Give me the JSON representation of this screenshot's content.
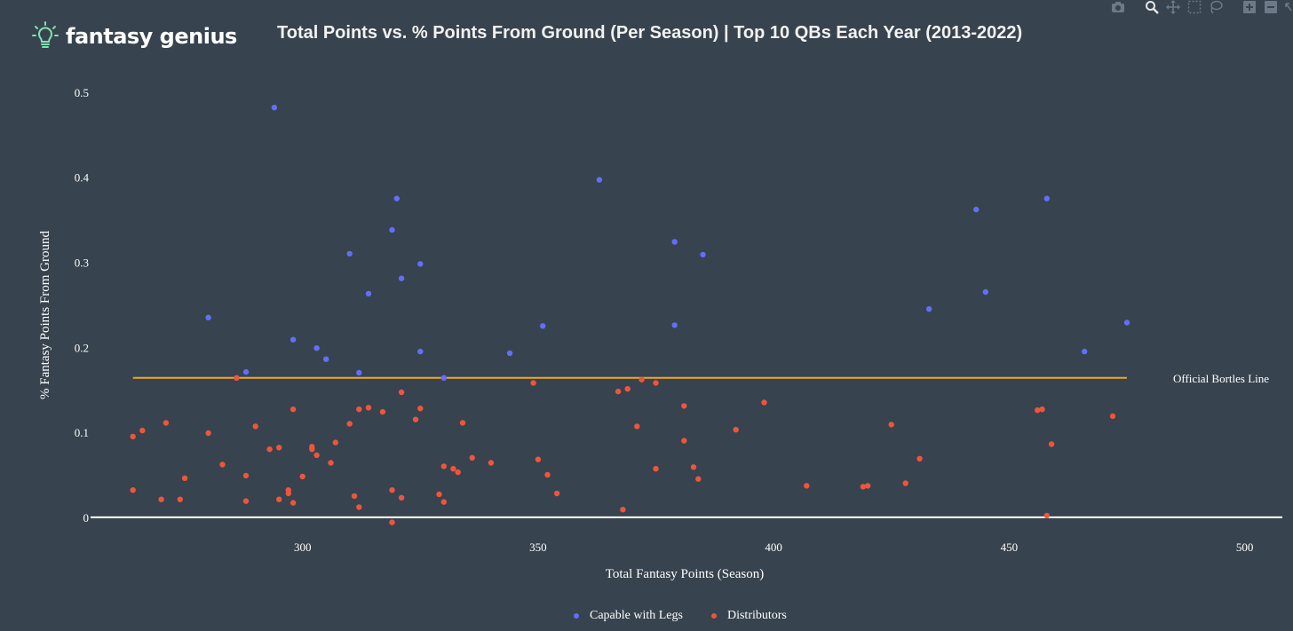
{
  "brand": {
    "name": "fantasy genius",
    "icon": "lightbulb-icon",
    "icon_color": "#7fe3b1"
  },
  "toolbar": {
    "icons": [
      "camera-icon",
      "zoom-icon",
      "pan-icon",
      "box-select-icon",
      "lasso-icon",
      "zoom-in-icon",
      "zoom-out-icon",
      "autoscale-icon"
    ]
  },
  "colors": {
    "background": "#37434e",
    "capable": "#636efa",
    "distributors": "#ef553b",
    "bortles_line": "#f5a623",
    "zero_line": "#ffffff"
  },
  "chart_data": {
    "type": "scatter",
    "title": "Total Points vs. % Points From Ground (Per Season) | Top 10 QBs Each Year (2013-2022)",
    "xlabel": "Total Fantasy Points (Season)",
    "ylabel": "% Fantasy Points From Ground",
    "xlim": [
      255,
      508
    ],
    "ylim": [
      -0.02,
      0.525
    ],
    "xticks": [
      300,
      350,
      400,
      450,
      500
    ],
    "xtick_labels": [
      "300",
      "350",
      "400",
      "450",
      "500"
    ],
    "yticks": [
      0,
      0.1,
      0.2,
      0.3,
      0.4,
      0.5
    ],
    "ytick_labels": [
      "0",
      "0.1",
      "0.2",
      "0.3",
      "0.4",
      "0.5"
    ],
    "legend_position": "bottom-center",
    "grid": false,
    "reference_line": {
      "label": "Official Bortles Line",
      "y": 0.164,
      "x_range": [
        264,
        475
      ]
    },
    "series": [
      {
        "name": "Capable with Legs",
        "color": "#636efa",
        "points": [
          [
            294,
            0.482
          ],
          [
            280,
            0.235
          ],
          [
            288,
            0.171
          ],
          [
            298,
            0.209
          ],
          [
            303,
            0.199
          ],
          [
            305,
            0.186
          ],
          [
            310,
            0.31
          ],
          [
            312,
            0.17
          ],
          [
            314,
            0.263
          ],
          [
            319,
            0.338
          ],
          [
            320,
            0.375
          ],
          [
            321,
            0.281
          ],
          [
            325,
            0.298
          ],
          [
            325,
            0.195
          ],
          [
            330,
            0.164
          ],
          [
            344,
            0.193
          ],
          [
            351,
            0.225
          ],
          [
            363,
            0.397
          ],
          [
            379,
            0.324
          ],
          [
            379,
            0.226
          ],
          [
            385,
            0.309
          ],
          [
            433,
            0.245
          ],
          [
            443,
            0.362
          ],
          [
            445,
            0.265
          ],
          [
            458,
            0.375
          ],
          [
            466,
            0.195
          ],
          [
            475,
            0.229
          ]
        ]
      },
      {
        "name": "Distributors",
        "color": "#ef553b",
        "points": [
          [
            264,
            0.095
          ],
          [
            264,
            0.032
          ],
          [
            266,
            0.102
          ],
          [
            270,
            0.021
          ],
          [
            271,
            0.111
          ],
          [
            274,
            0.021
          ],
          [
            275,
            0.046
          ],
          [
            280,
            0.099
          ],
          [
            283,
            0.062
          ],
          [
            286,
            0.164
          ],
          [
            288,
            0.049
          ],
          [
            288,
            0.019
          ],
          [
            290,
            0.107
          ],
          [
            293,
            0.08
          ],
          [
            295,
            0.082
          ],
          [
            295,
            0.021
          ],
          [
            297,
            0.032
          ],
          [
            297,
            0.028
          ],
          [
            298,
            0.127
          ],
          [
            298,
            0.017
          ],
          [
            300,
            0.048
          ],
          [
            302,
            0.08
          ],
          [
            302,
            0.083
          ],
          [
            303,
            0.073
          ],
          [
            306,
            0.064
          ],
          [
            307,
            0.088
          ],
          [
            310,
            0.11
          ],
          [
            311,
            0.025
          ],
          [
            312,
            0.127
          ],
          [
            312,
            0.012
          ],
          [
            314,
            0.129
          ],
          [
            317,
            0.124
          ],
          [
            319,
            0.032
          ],
          [
            319,
            -0.006
          ],
          [
            321,
            0.147
          ],
          [
            321,
            0.023
          ],
          [
            324,
            0.115
          ],
          [
            325,
            0.128
          ],
          [
            329,
            0.027
          ],
          [
            330,
            0.06
          ],
          [
            330,
            0.018
          ],
          [
            332,
            0.057
          ],
          [
            333,
            0.053
          ],
          [
            334,
            0.111
          ],
          [
            336,
            0.07
          ],
          [
            340,
            0.064
          ],
          [
            349,
            0.158
          ],
          [
            350,
            0.068
          ],
          [
            352,
            0.05
          ],
          [
            354,
            0.028
          ],
          [
            367,
            0.148
          ],
          [
            368,
            0.009
          ],
          [
            369,
            0.151
          ],
          [
            371,
            0.107
          ],
          [
            372,
            0.162
          ],
          [
            375,
            0.158
          ],
          [
            375,
            0.057
          ],
          [
            381,
            0.131
          ],
          [
            381,
            0.09
          ],
          [
            383,
            0.059
          ],
          [
            384,
            0.045
          ],
          [
            392,
            0.103
          ],
          [
            398,
            0.135
          ],
          [
            407,
            0.037
          ],
          [
            419,
            0.036
          ],
          [
            420,
            0.037
          ],
          [
            425,
            0.109
          ],
          [
            428,
            0.04
          ],
          [
            431,
            0.069
          ],
          [
            456,
            0.126
          ],
          [
            457,
            0.127
          ],
          [
            458,
            0.002
          ],
          [
            459,
            0.086
          ],
          [
            472,
            0.119
          ]
        ]
      }
    ]
  }
}
